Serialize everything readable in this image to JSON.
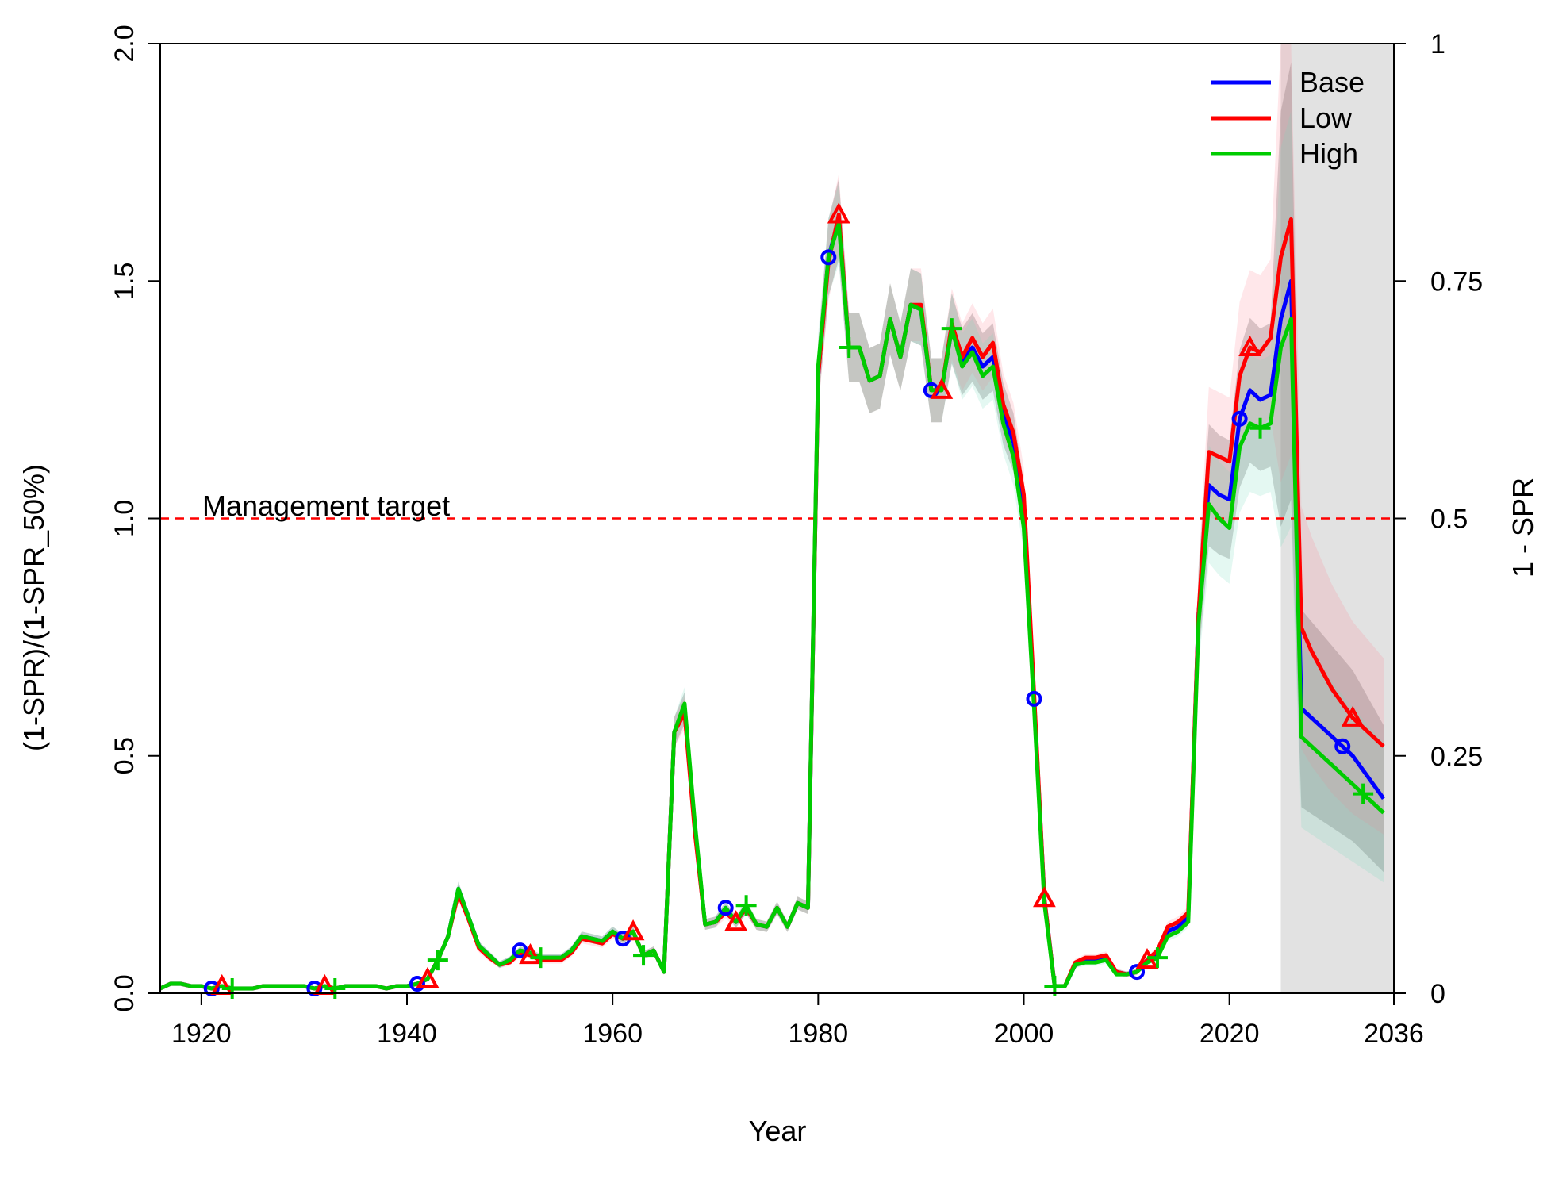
{
  "chart_data": {
    "type": "line",
    "title": "",
    "xlabel": "Year",
    "ylabel": "(1-SPR)/(1-SPR_50%)",
    "y2label": "1 - SPR",
    "xlim": [
      1916,
      2036
    ],
    "ylim": [
      0,
      2.0
    ],
    "y2lim": [
      0,
      1
    ],
    "x_ticks": [
      1920,
      1940,
      1960,
      1980,
      2000,
      2020,
      2036
    ],
    "y_ticks": [
      "0.0",
      "0.5",
      "1.0",
      "1.5",
      "2.0"
    ],
    "y2_ticks": [
      "0",
      "0.25",
      "0.5",
      "0.75",
      "1"
    ],
    "forecast_region": [
      2025,
      2036
    ],
    "reference_line": {
      "y": 1.0,
      "label": "Management target",
      "color": "#ff0000"
    },
    "legend_position": "top-right",
    "grid": false,
    "x": [
      1916,
      1917,
      1918,
      1919,
      1920,
      1921,
      1922,
      1923,
      1924,
      1925,
      1926,
      1927,
      1928,
      1929,
      1930,
      1931,
      1932,
      1933,
      1934,
      1935,
      1936,
      1937,
      1938,
      1939,
      1940,
      1941,
      1942,
      1943,
      1944,
      1945,
      1946,
      1947,
      1948,
      1949,
      1950,
      1951,
      1952,
      1953,
      1954,
      1955,
      1956,
      1957,
      1958,
      1959,
      1960,
      1961,
      1962,
      1963,
      1964,
      1965,
      1966,
      1967,
      1968,
      1969,
      1970,
      1971,
      1972,
      1973,
      1974,
      1975,
      1976,
      1977,
      1978,
      1979,
      1980,
      1981,
      1982,
      1983,
      1984,
      1985,
      1986,
      1987,
      1988,
      1989,
      1990,
      1991,
      1992,
      1993,
      1994,
      1995,
      1996,
      1997,
      1998,
      1999,
      2000,
      2001,
      2002,
      2003,
      2004,
      2005,
      2006,
      2007,
      2008,
      2009,
      2010,
      2011,
      2012,
      2013,
      2014,
      2015,
      2016,
      2017,
      2018,
      2019,
      2020,
      2021,
      2022,
      2023,
      2024,
      2025,
      2026,
      2027,
      2028,
      2029,
      2030,
      2031,
      2032,
      2033,
      2034,
      2035
    ],
    "series": [
      {
        "name": "Base",
        "color": "#0000ff",
        "marker": "circle",
        "values": [
          0.01,
          0.02,
          0.02,
          0.015,
          0.015,
          0.01,
          0.015,
          0.01,
          0.01,
          0.01,
          0.015,
          0.015,
          0.015,
          0.015,
          0.015,
          0.01,
          0.015,
          0.01,
          0.015,
          0.015,
          0.015,
          0.015,
          0.01,
          0.015,
          0.015,
          0.02,
          0.03,
          0.07,
          0.12,
          0.22,
          0.16,
          0.1,
          0.08,
          0.06,
          0.07,
          0.09,
          0.085,
          0.075,
          0.075,
          0.075,
          0.09,
          0.12,
          0.115,
          0.11,
          0.13,
          0.115,
          0.13,
          0.08,
          0.09,
          0.045,
          0.55,
          0.6,
          0.35,
          0.145,
          0.15,
          0.18,
          0.15,
          0.18,
          0.145,
          0.14,
          0.18,
          0.14,
          0.19,
          0.18,
          1.3,
          1.55,
          1.63,
          1.36,
          1.36,
          1.29,
          1.3,
          1.42,
          1.34,
          1.45,
          1.44,
          1.27,
          1.27,
          1.4,
          1.33,
          1.36,
          1.32,
          1.34,
          1.22,
          1.16,
          1.02,
          0.62,
          0.2,
          0.015,
          0.015,
          0.06,
          0.07,
          0.07,
          0.075,
          0.045,
          0.04,
          0.045,
          0.07,
          0.08,
          0.13,
          0.14,
          0.16,
          0.8,
          1.07,
          1.05,
          1.04,
          1.21,
          1.27,
          1.25,
          1.26,
          1.42,
          1.5,
          0.6,
          0.58,
          0.56,
          0.54,
          0.52,
          0.5,
          0.47,
          0.44,
          0.41
        ],
        "marker_years": [
          1921,
          1931,
          1941,
          1951,
          1961,
          1971,
          1981,
          1991,
          2001,
          2011,
          2021,
          2031
        ]
      },
      {
        "name": "Low",
        "color": "#ff0000",
        "marker": "triangle",
        "values": [
          0.01,
          0.02,
          0.02,
          0.015,
          0.015,
          0.01,
          0.015,
          0.01,
          0.01,
          0.01,
          0.015,
          0.015,
          0.015,
          0.015,
          0.015,
          0.01,
          0.015,
          0.01,
          0.015,
          0.015,
          0.015,
          0.015,
          0.01,
          0.015,
          0.015,
          0.02,
          0.03,
          0.07,
          0.12,
          0.21,
          0.155,
          0.095,
          0.075,
          0.06,
          0.065,
          0.085,
          0.08,
          0.07,
          0.07,
          0.07,
          0.085,
          0.115,
          0.11,
          0.105,
          0.125,
          0.115,
          0.13,
          0.08,
          0.09,
          0.045,
          0.55,
          0.59,
          0.34,
          0.145,
          0.15,
          0.17,
          0.15,
          0.18,
          0.145,
          0.14,
          0.18,
          0.14,
          0.19,
          0.18,
          1.3,
          1.54,
          1.64,
          1.36,
          1.36,
          1.29,
          1.3,
          1.42,
          1.34,
          1.45,
          1.45,
          1.27,
          1.27,
          1.41,
          1.34,
          1.38,
          1.34,
          1.37,
          1.24,
          1.18,
          1.05,
          0.63,
          0.2,
          0.015,
          0.015,
          0.065,
          0.075,
          0.075,
          0.08,
          0.045,
          0.04,
          0.045,
          0.07,
          0.09,
          0.14,
          0.15,
          0.17,
          0.8,
          1.14,
          1.13,
          1.12,
          1.3,
          1.36,
          1.35,
          1.38,
          1.55,
          1.63,
          0.77,
          0.72,
          0.68,
          0.64,
          0.61,
          0.58,
          0.56,
          0.54,
          0.52
        ],
        "marker_years": [
          1922,
          1932,
          1942,
          1952,
          1962,
          1972,
          1982,
          1992,
          2002,
          2012,
          2022,
          2032
        ]
      },
      {
        "name": "High",
        "color": "#00cc00",
        "marker": "plus",
        "values": [
          0.01,
          0.02,
          0.02,
          0.015,
          0.015,
          0.01,
          0.015,
          0.01,
          0.01,
          0.01,
          0.015,
          0.015,
          0.015,
          0.015,
          0.015,
          0.01,
          0.015,
          0.01,
          0.015,
          0.015,
          0.015,
          0.015,
          0.01,
          0.015,
          0.015,
          0.02,
          0.03,
          0.07,
          0.12,
          0.22,
          0.16,
          0.1,
          0.08,
          0.06,
          0.07,
          0.09,
          0.085,
          0.075,
          0.075,
          0.075,
          0.09,
          0.12,
          0.115,
          0.11,
          0.13,
          0.115,
          0.13,
          0.08,
          0.09,
          0.045,
          0.55,
          0.61,
          0.36,
          0.145,
          0.15,
          0.18,
          0.15,
          0.185,
          0.145,
          0.14,
          0.18,
          0.14,
          0.19,
          0.18,
          1.32,
          1.55,
          1.62,
          1.36,
          1.36,
          1.29,
          1.3,
          1.42,
          1.34,
          1.45,
          1.44,
          1.27,
          1.27,
          1.4,
          1.32,
          1.35,
          1.3,
          1.32,
          1.2,
          1.13,
          0.98,
          0.6,
          0.19,
          0.015,
          0.015,
          0.06,
          0.065,
          0.065,
          0.07,
          0.04,
          0.04,
          0.045,
          0.065,
          0.075,
          0.12,
          0.13,
          0.15,
          0.78,
          1.03,
          1.0,
          0.98,
          1.15,
          1.2,
          1.19,
          1.2,
          1.36,
          1.42,
          0.54,
          0.52,
          0.5,
          0.48,
          0.46,
          0.44,
          0.42,
          0.4,
          0.38
        ],
        "marker_years": [
          1923,
          1933,
          1943,
          1953,
          1963,
          1973,
          1983,
          1993,
          2003,
          2013,
          2023,
          2033
        ]
      }
    ]
  }
}
